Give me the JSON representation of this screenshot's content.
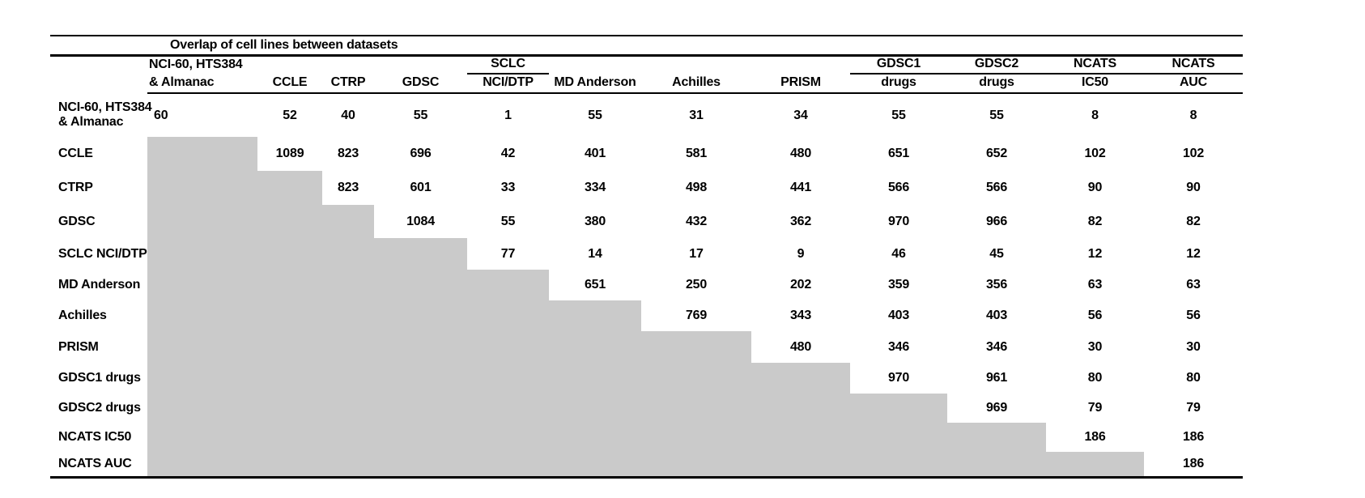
{
  "chart_data": {
    "type": "table",
    "title": "Overlap of cell lines between datasets",
    "column_headers": [
      [
        "NCI-60, HTS384",
        "& Almanac"
      ],
      [
        "",
        "CCLE"
      ],
      [
        "",
        "CTRP"
      ],
      [
        "",
        "GDSC"
      ],
      [
        "SCLC",
        "NCI/DTP"
      ],
      [
        "",
        "MD Anderson"
      ],
      [
        "",
        "Achilles"
      ],
      [
        "",
        "PRISM"
      ],
      [
        "GDSC1",
        "drugs"
      ],
      [
        "GDSC2",
        "drugs"
      ],
      [
        "NCATS",
        "IC50"
      ],
      [
        "NCATS",
        "AUC"
      ]
    ],
    "rows": [
      {
        "label": "NCI-60, HTS384 & Almanac",
        "label_lines": [
          "NCI-60, HTS384",
          "& Almanac"
        ],
        "values": [
          60,
          52,
          40,
          55,
          1,
          55,
          31,
          34,
          55,
          55,
          8,
          8
        ]
      },
      {
        "label": "CCLE",
        "values": [
          null,
          1089,
          823,
          696,
          42,
          401,
          581,
          480,
          651,
          652,
          102,
          102
        ]
      },
      {
        "label": "CTRP",
        "values": [
          null,
          null,
          823,
          601,
          33,
          334,
          498,
          441,
          566,
          566,
          90,
          90
        ]
      },
      {
        "label": "GDSC",
        "values": [
          null,
          null,
          null,
          1084,
          55,
          380,
          432,
          362,
          970,
          966,
          82,
          82
        ]
      },
      {
        "label": "SCLC NCI/DTP",
        "values": [
          null,
          null,
          null,
          null,
          77,
          14,
          17,
          9,
          46,
          45,
          12,
          12
        ]
      },
      {
        "label": "MD Anderson",
        "values": [
          null,
          null,
          null,
          null,
          null,
          651,
          250,
          202,
          359,
          356,
          63,
          63
        ]
      },
      {
        "label": "Achilles",
        "values": [
          null,
          null,
          null,
          null,
          null,
          null,
          769,
          343,
          403,
          403,
          56,
          56
        ]
      },
      {
        "label": "PRISM",
        "values": [
          null,
          null,
          null,
          null,
          null,
          null,
          null,
          480,
          346,
          346,
          30,
          30
        ]
      },
      {
        "label": "GDSC1 drugs",
        "values": [
          null,
          null,
          null,
          null,
          null,
          null,
          null,
          null,
          970,
          961,
          80,
          80
        ]
      },
      {
        "label": "GDSC2 drugs",
        "values": [
          null,
          null,
          null,
          null,
          null,
          null,
          null,
          null,
          null,
          969,
          79,
          79
        ]
      },
      {
        "label": "NCATS IC50",
        "values": [
          null,
          null,
          null,
          null,
          null,
          null,
          null,
          null,
          null,
          null,
          186,
          186
        ]
      },
      {
        "label": "NCATS AUC",
        "values": [
          null,
          null,
          null,
          null,
          null,
          null,
          null,
          null,
          null,
          null,
          null,
          186
        ]
      }
    ],
    "shaded_region": "lower-triangle",
    "shade_color": "#cacaca",
    "layout_hints": {
      "gridlines": "horizontal rules only (top, under title, under headers, bottom)",
      "value_alignment": "first data column left-aligned, others centered"
    }
  }
}
